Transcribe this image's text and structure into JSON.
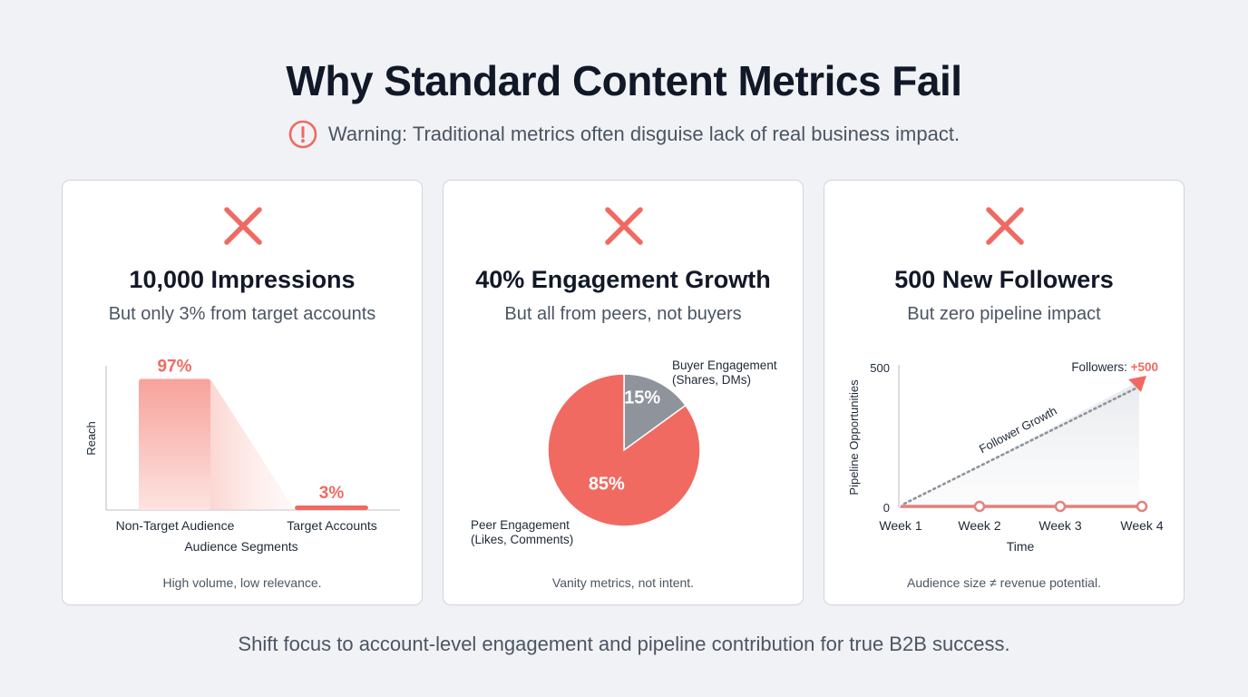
{
  "header": {
    "title": "Why Standard Content Metrics Fail",
    "warning": "Warning: Traditional metrics often disguise lack of real business impact."
  },
  "colors": {
    "accent": "#f06a62",
    "gray_slice": "#8e939c",
    "text_dark": "#111827",
    "text_muted": "#4b5563"
  },
  "icons": {
    "warning": "exclamation-circle-icon",
    "fail": "x-mark-icon"
  },
  "cards": [
    {
      "title": "10,000 Impressions",
      "subtitle": "But only 3% from target accounts",
      "footer": "High volume, low relevance."
    },
    {
      "title": "40% Engagement Growth",
      "subtitle": "But all from peers, not buyers",
      "footer": "Vanity metrics, not intent."
    },
    {
      "title": "500 New Followers",
      "subtitle": "But zero pipeline impact",
      "footer": "Audience size ≠ revenue potential."
    }
  ],
  "chart_data": [
    {
      "type": "bar",
      "categories": [
        "Non-Target Audience",
        "Target Accounts"
      ],
      "values": [
        97,
        3
      ],
      "data_labels": [
        "97%",
        "3%"
      ],
      "xlabel": "Audience Segments",
      "ylabel": "Reach",
      "ylim": [
        0,
        100
      ],
      "grid": false
    },
    {
      "type": "pie",
      "slices": [
        {
          "label_lines": [
            "Buyer Engagement",
            "(Shares, DMs)"
          ],
          "value": 15,
          "data_label": "15%",
          "color": "#8e939c"
        },
        {
          "label_lines": [
            "Peer Engagement",
            "(Likes, Comments)"
          ],
          "value": 85,
          "data_label": "85%",
          "color": "#f06a62"
        }
      ]
    },
    {
      "type": "line",
      "x": [
        "Week 1",
        "Week 2",
        "Week 3",
        "Week 4"
      ],
      "series": [
        {
          "values": [
            0,
            0,
            0,
            0
          ]
        }
      ],
      "trend": {
        "label": "Follower Growth",
        "from": 0,
        "to": 500
      },
      "annotation": {
        "prefix": "Followers: ",
        "value": "+500"
      },
      "xlabel": "Time",
      "ylabel": "Pipeline Opportunities",
      "yticks": [
        "500",
        "0"
      ],
      "ylim": [
        0,
        500
      ],
      "grid": false
    }
  ],
  "footer": "Shift focus to account-level engagement and pipeline contribution for true B2B success."
}
